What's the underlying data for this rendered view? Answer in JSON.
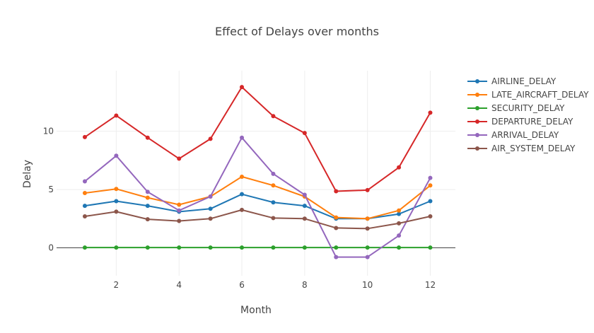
{
  "chart_data": {
    "type": "line",
    "title": "Effect of Delays over months",
    "xlabel": "Month",
    "ylabel": "Delay",
    "x": [
      1,
      2,
      3,
      4,
      5,
      6,
      7,
      8,
      9,
      10,
      11,
      12
    ],
    "xlim": [
      0.1,
      12.8
    ],
    "ylim": [
      -2.4,
      15.2
    ],
    "xticks": [
      2,
      4,
      6,
      8,
      10,
      12
    ],
    "yticks": [
      0,
      5,
      10
    ],
    "grid": true,
    "legend_position": "right",
    "series": [
      {
        "name": "AIRLINE_DELAY",
        "color": "#1f77b4",
        "values": [
          3.6,
          4.0,
          3.6,
          3.1,
          3.35,
          4.6,
          3.9,
          3.6,
          2.5,
          2.5,
          2.9,
          4.0
        ]
      },
      {
        "name": "LATE_AIRCRAFT_DELAY",
        "color": "#ff7f0e",
        "values": [
          4.7,
          5.05,
          4.3,
          3.7,
          4.4,
          6.1,
          5.35,
          4.4,
          2.6,
          2.5,
          3.2,
          5.35
        ]
      },
      {
        "name": "SECURITY_DELAY",
        "color": "#2ca02c",
        "values": [
          0.02,
          0.02,
          0.02,
          0.02,
          0.02,
          0.02,
          0.02,
          0.02,
          0.02,
          0.02,
          0.02,
          0.02
        ]
      },
      {
        "name": "DEPARTURE_DELAY",
        "color": "#d62728",
        "values": [
          9.5,
          11.35,
          9.45,
          7.65,
          9.35,
          13.8,
          11.3,
          9.85,
          4.85,
          4.95,
          6.9,
          11.6
        ]
      },
      {
        "name": "ARRIVAL_DELAY",
        "color": "#9467bd",
        "values": [
          5.7,
          7.9,
          4.8,
          3.2,
          4.4,
          9.45,
          6.35,
          4.55,
          -0.8,
          -0.8,
          1.05,
          6.0
        ]
      },
      {
        "name": "AIR_SYSTEM_DELAY",
        "color": "#8c564b",
        "values": [
          2.7,
          3.1,
          2.45,
          2.3,
          2.5,
          3.25,
          2.55,
          2.5,
          1.7,
          1.65,
          2.1,
          2.7
        ]
      }
    ]
  }
}
